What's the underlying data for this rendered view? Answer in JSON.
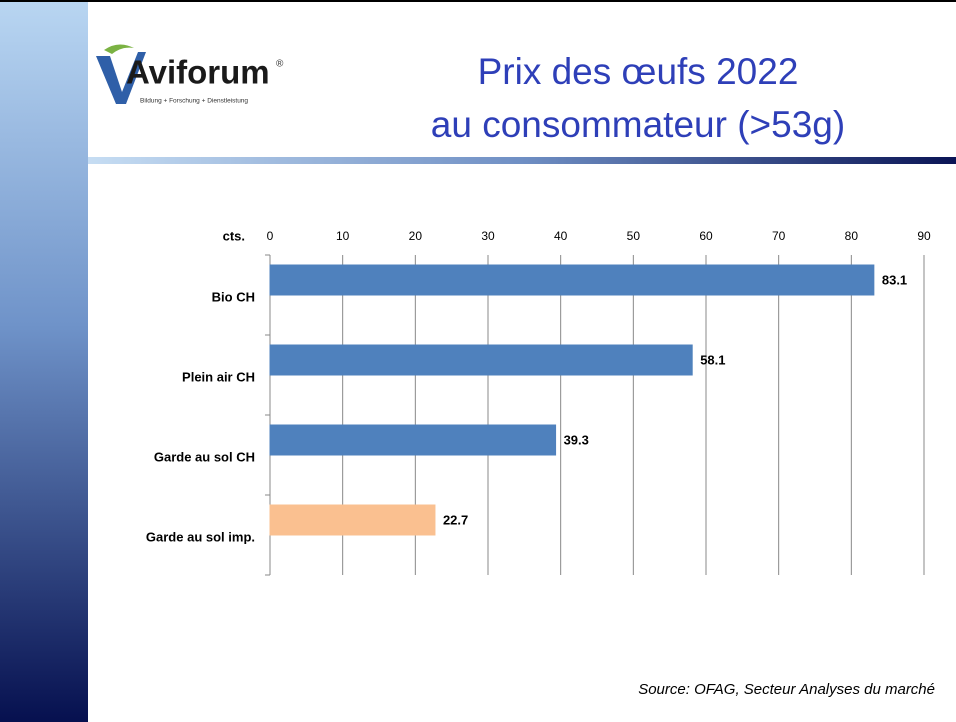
{
  "logo": {
    "name": "Aviforum",
    "mark": "®",
    "tagline": "Bildung + Forschung + Dienstleistung"
  },
  "chart_data": {
    "type": "bar",
    "orientation": "horizontal",
    "title": [
      "Prix des œufs 2022",
      "au consommateur (>53g)"
    ],
    "x_label": "cts.",
    "categories": [
      "Bio CH",
      "Plein air CH",
      "Garde au sol CH",
      "Garde au sol imp."
    ],
    "values": [
      83.1,
      58.1,
      39.3,
      22.7
    ],
    "colors": [
      "#4f81bd",
      "#4f81bd",
      "#4f81bd",
      "#fac090"
    ],
    "xlim": [
      0,
      90
    ],
    "xticks": [
      0,
      10,
      20,
      30,
      40,
      50,
      60,
      70,
      80,
      90
    ],
    "grid": true,
    "source": "Source: OFAG, Secteur Analyses du marché"
  }
}
